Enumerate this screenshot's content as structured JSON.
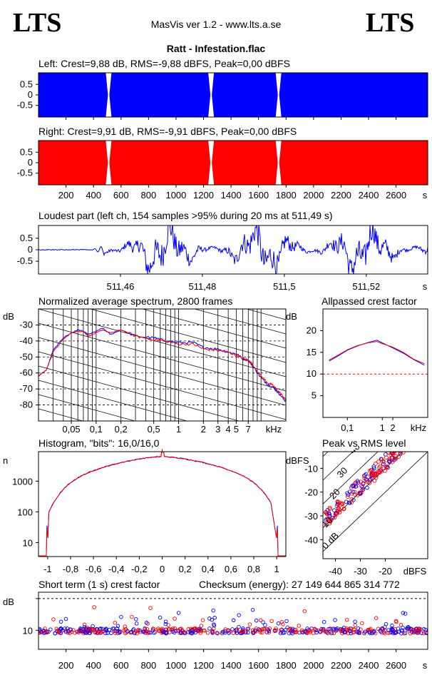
{
  "header": {
    "logo_left": "LTS",
    "logo_right": "LTS",
    "app": "MasVis ver 1.2 - www.lts.a.se",
    "file": "Ratt - Infestation.flac"
  },
  "colors": {
    "left": "#0000ff",
    "right": "#ff0000"
  },
  "chart_data": [
    {
      "id": "left",
      "type": "area",
      "title": "Left: Crest=9,88 dB, RMS=-9,88 dBFS, Peak=0,00 dBFS",
      "ylim": [
        -1,
        1
      ],
      "yticks": [
        "0.5",
        "0",
        "-0.5"
      ],
      "xlim": [
        0,
        2830
      ],
      "gaps_s": [
        510,
        1255,
        1745
      ]
    },
    {
      "id": "right",
      "type": "area",
      "title": "Right: Crest=9,91 dB, RMS=-9,91 dBFS, Peak=0,00 dBFS",
      "ylim": [
        -1,
        1
      ],
      "yticks": [
        "0.5",
        "0",
        "-0.5"
      ],
      "xlim": [
        0,
        2830
      ],
      "xticks": [
        "200",
        "400",
        "600",
        "800",
        "1000",
        "1200",
        "1400",
        "1600",
        "1800",
        "2000",
        "2200",
        "2400",
        "2600"
      ],
      "xunit": "s",
      "gaps_s": [
        510,
        1255,
        1745
      ]
    },
    {
      "id": "loudest",
      "type": "line",
      "title": "Loudest part (left  ch, 154 samples >95% during 20 ms at 511,49 s)",
      "ylim": [
        -1,
        1
      ],
      "yticks": [
        "0.5",
        "0",
        "-0.5"
      ],
      "xlim": [
        511.44,
        511.535
      ],
      "xticks": [
        "511,46",
        "511,48",
        "511,5",
        "511,52"
      ],
      "xunit": "s"
    },
    {
      "id": "spectrum",
      "type": "line",
      "title": "Normalized average spectrum, 2800 frames",
      "ylabel": "dB",
      "yticks": [
        "-30",
        "-40",
        "-50",
        "-60",
        "-70",
        "-80"
      ],
      "ylim": [
        -90,
        -20
      ],
      "xticks": [
        "0,05",
        "0,1",
        "0,2",
        "0,5",
        "1",
        "2",
        "3",
        "4",
        "5",
        "7"
      ],
      "xunit": "kHz",
      "xscale": "log",
      "freq_khz": [
        0.02,
        0.025,
        0.03,
        0.04,
        0.05,
        0.06,
        0.07,
        0.08,
        0.1,
        0.12,
        0.15,
        0.2,
        0.3,
        0.5,
        0.7,
        1,
        1.5,
        2,
        3,
        4,
        5,
        6,
        7,
        8,
        10,
        12,
        14,
        16,
        18,
        20
      ],
      "left_db": [
        -62,
        -58,
        -46,
        -38,
        -35,
        -33,
        -34,
        -36,
        -34,
        -32,
        -36,
        -33,
        -37,
        -38,
        -40,
        -41,
        -41,
        -44,
        -45,
        -47,
        -48,
        -51,
        -52,
        -56,
        -63,
        -67,
        -69,
        -72,
        -75,
        -78
      ],
      "right_db": [
        -62,
        -58,
        -47,
        -39,
        -35,
        -34,
        -34,
        -37,
        -35,
        -33,
        -35,
        -33,
        -37,
        -39,
        -40,
        -42,
        -42,
        -45,
        -46,
        -47,
        -49,
        -51,
        -52,
        -55,
        -62,
        -66,
        -68,
        -71,
        -74,
        -77
      ]
    },
    {
      "id": "crest",
      "type": "line",
      "title": "Allpassed crest factor",
      "ylabel": "dB",
      "yticks": [
        "20",
        "15",
        "10",
        "5"
      ],
      "ylim": [
        0,
        25
      ],
      "xticks": [
        "0,1",
        "1",
        "2"
      ],
      "xunit": "kHz",
      "xscale": "log",
      "reference_db": 10,
      "freq_khz": [
        0.03,
        0.05,
        0.1,
        0.2,
        0.4,
        0.7,
        1,
        2,
        4,
        8,
        12,
        16
      ],
      "left_db": [
        13,
        14,
        15.5,
        16.5,
        17.3,
        17.8,
        17.2,
        16,
        14.8,
        13.3,
        12.6,
        12
      ],
      "right_db": [
        13.2,
        14.2,
        15.6,
        16.6,
        17.2,
        17.5,
        17,
        16.2,
        15,
        13.4,
        12.8,
        12.4
      ]
    },
    {
      "id": "histogram",
      "type": "line",
      "title": "Histogram, \"bits\": 16,0/16,0",
      "ylabel": "n",
      "yticks": [
        "1000",
        "100",
        "10"
      ],
      "yscale": "log",
      "xticks": [
        "-1",
        "-0,8",
        "-0,6",
        "-0,4",
        "-0,2",
        "0",
        "0,2",
        "0,4",
        "0,6",
        "0,8",
        "1"
      ],
      "xlim": [
        -1.08,
        1.08
      ]
    },
    {
      "id": "peak_rms",
      "type": "scatter",
      "title": "Peak vs RMS level",
      "ylabel": "dBFS",
      "xlabel": "dBFS",
      "yticks": [
        "-10",
        "-20",
        "-30",
        "-40"
      ],
      "xticks": [
        "-40",
        "-30",
        "-20"
      ],
      "xlim": [
        -45,
        -3
      ],
      "ylim": [
        -48,
        -3
      ],
      "diag_labels": [
        "40",
        "30",
        "20",
        "10",
        "0 dB"
      ]
    },
    {
      "id": "short_crest",
      "type": "scatter",
      "title": "Short term (1 s) crest factor",
      "ylabel": "dB",
      "yticks": [
        "10"
      ],
      "xticks": [
        "200",
        "400",
        "600",
        "800",
        "1000",
        "1200",
        "1400",
        "1600",
        "1800",
        "2000",
        "2200",
        "2400",
        "2600"
      ],
      "xunit": "s",
      "xlim": [
        0,
        2830
      ],
      "ylim": [
        4,
        22
      ],
      "reference_db": 20
    }
  ],
  "checksum": "Checksum (energy):  27 149 644 865 314 772"
}
